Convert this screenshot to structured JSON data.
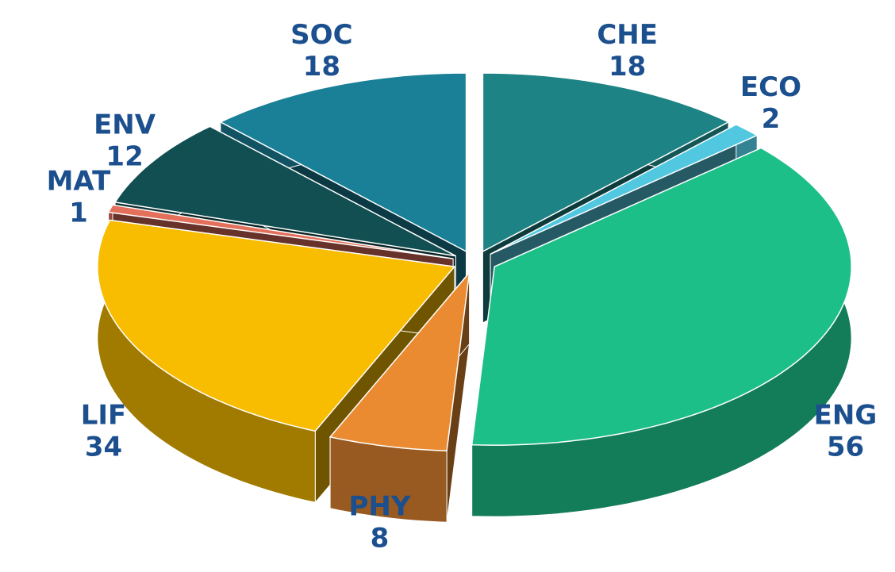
{
  "chart_data": {
    "type": "pie3d",
    "categories": [
      "CHE",
      "ECO",
      "ENG",
      "PHY",
      "LIF",
      "MAT",
      "ENV",
      "SOC"
    ],
    "values": [
      18,
      2,
      56,
      8,
      34,
      1,
      12,
      18
    ],
    "colors": [
      "#1e8384",
      "#52c8e0",
      "#1dbf88",
      "#ea8b31",
      "#f8bc00",
      "#e3705a",
      "#124f52",
      "#1a8098"
    ],
    "label_color": "#1b4f8e"
  }
}
